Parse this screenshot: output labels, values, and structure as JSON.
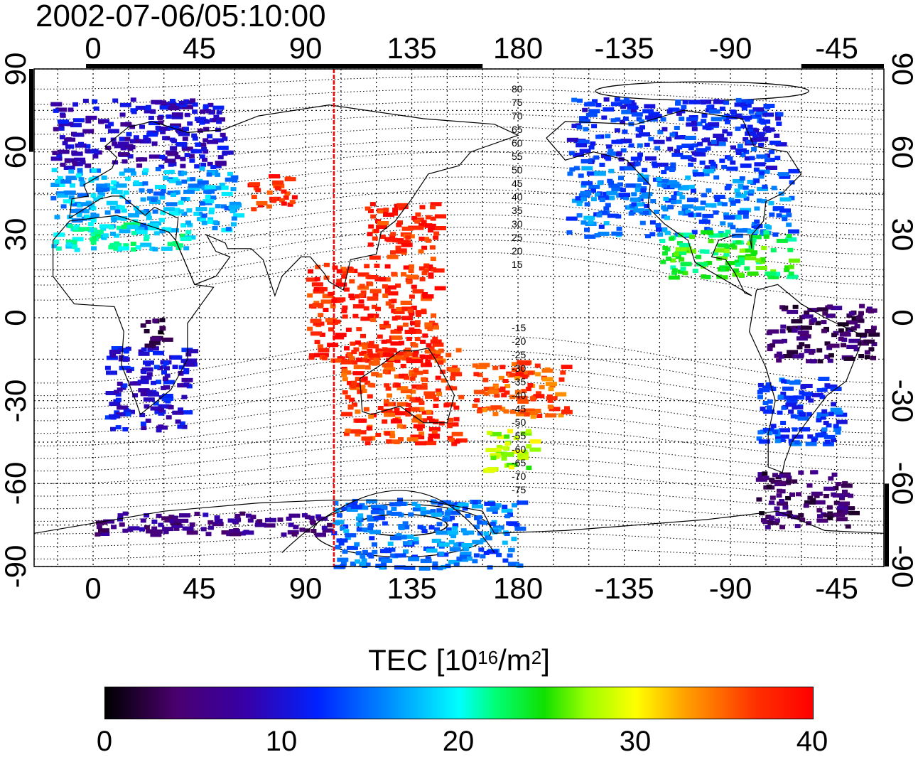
{
  "timestamp": "2002-07-06/05:10:00",
  "axes": {
    "top_ticks": [
      "0",
      "45",
      "90",
      "135",
      "180",
      "-135",
      "-90",
      "-45"
    ],
    "bottom_ticks": [
      "0",
      "45",
      "90",
      "135",
      "180",
      "-135",
      "-90",
      "-45"
    ],
    "left_ticks": [
      "90",
      "60",
      "30",
      "0",
      "-30",
      "-60",
      "-90"
    ],
    "right_ticks": [
      "90",
      "60",
      "30",
      "0",
      "-30",
      "-60",
      "-90"
    ]
  },
  "contour_labels": {
    "north": [
      "80",
      "75",
      "70",
      "65",
      "60",
      "55",
      "50",
      "45",
      "40",
      "35",
      "30",
      "25",
      "20",
      "15"
    ],
    "south": [
      "-15",
      "-20",
      "-25",
      "-30",
      "-35",
      "-40",
      "-45",
      "-50",
      "-55",
      "-60",
      "-65",
      "-70",
      "-75"
    ]
  },
  "colorbar": {
    "title_prefix": "TEC  [10",
    "title_exp1": "16",
    "title_mid": "/m",
    "title_exp2": "2",
    "title_suffix": "]",
    "tick_labels": [
      "0",
      "10",
      "20",
      "30",
      "40"
    ],
    "min": 0,
    "max": 40
  },
  "colors": {
    "meridian_marker": "#ff0000"
  },
  "chart_data": {
    "type": "heatmap",
    "title": "2002-07-06/05:10:00",
    "xlabel": "",
    "ylabel": "",
    "xlim": [
      -25,
      335
    ],
    "ylim": [
      -90,
      90
    ],
    "value_range": [
      0,
      40
    ],
    "marker_longitude": 102,
    "regions": [
      {
        "lon": [
          -18,
          55
        ],
        "lat": [
          55,
          80
        ],
        "tec": 9
      },
      {
        "lon": [
          -18,
          60
        ],
        "lat": [
          32,
          55
        ],
        "tec": 17
      },
      {
        "lon": [
          -18,
          40
        ],
        "lat": [
          25,
          35
        ],
        "tec": 20
      },
      {
        "lon": [
          65,
          85
        ],
        "lat": [
          40,
          52
        ],
        "tec": 38
      },
      {
        "lon": [
          115,
          145
        ],
        "lat": [
          22,
          42
        ],
        "tec": 38
      },
      {
        "lon": [
          90,
          145
        ],
        "lat": [
          -15,
          20
        ],
        "tec": 38
      },
      {
        "lon": [
          105,
          155
        ],
        "lat": [
          -45,
          -10
        ],
        "tec": 37
      },
      {
        "lon": [
          160,
          200
        ],
        "lat": [
          -35,
          -15
        ],
        "tec": 36
      },
      {
        "lon": [
          165,
          185
        ],
        "lat": [
          -55,
          -40
        ],
        "tec": 28
      },
      {
        "lon": [
          200,
          290
        ],
        "lat": [
          55,
          80
        ],
        "tec": 12
      },
      {
        "lon": [
          200,
          295
        ],
        "lat": [
          30,
          55
        ],
        "tec": 15
      },
      {
        "lon": [
          240,
          295
        ],
        "lat": [
          15,
          32
        ],
        "tec": 24
      },
      {
        "lon": [
          285,
          330
        ],
        "lat": [
          -15,
          5
        ],
        "tec": 4
      },
      {
        "lon": [
          280,
          315
        ],
        "lat": [
          -45,
          -20
        ],
        "tec": 13
      },
      {
        "lon": [
          280,
          320
        ],
        "lat": [
          -75,
          -55
        ],
        "tec": 4
      },
      {
        "lon": [
          5,
          40
        ],
        "lat": [
          -40,
          -10
        ],
        "tec": 10
      },
      {
        "lon": [
          20,
          30
        ],
        "lat": [
          -10,
          0
        ],
        "tec": 3
      },
      {
        "lon": [
          0,
          100
        ],
        "lat": [
          -78,
          -70
        ],
        "tec": 6
      },
      {
        "lon": [
          100,
          180
        ],
        "lat": [
          -90,
          -65
        ],
        "tec": 15
      }
    ]
  }
}
